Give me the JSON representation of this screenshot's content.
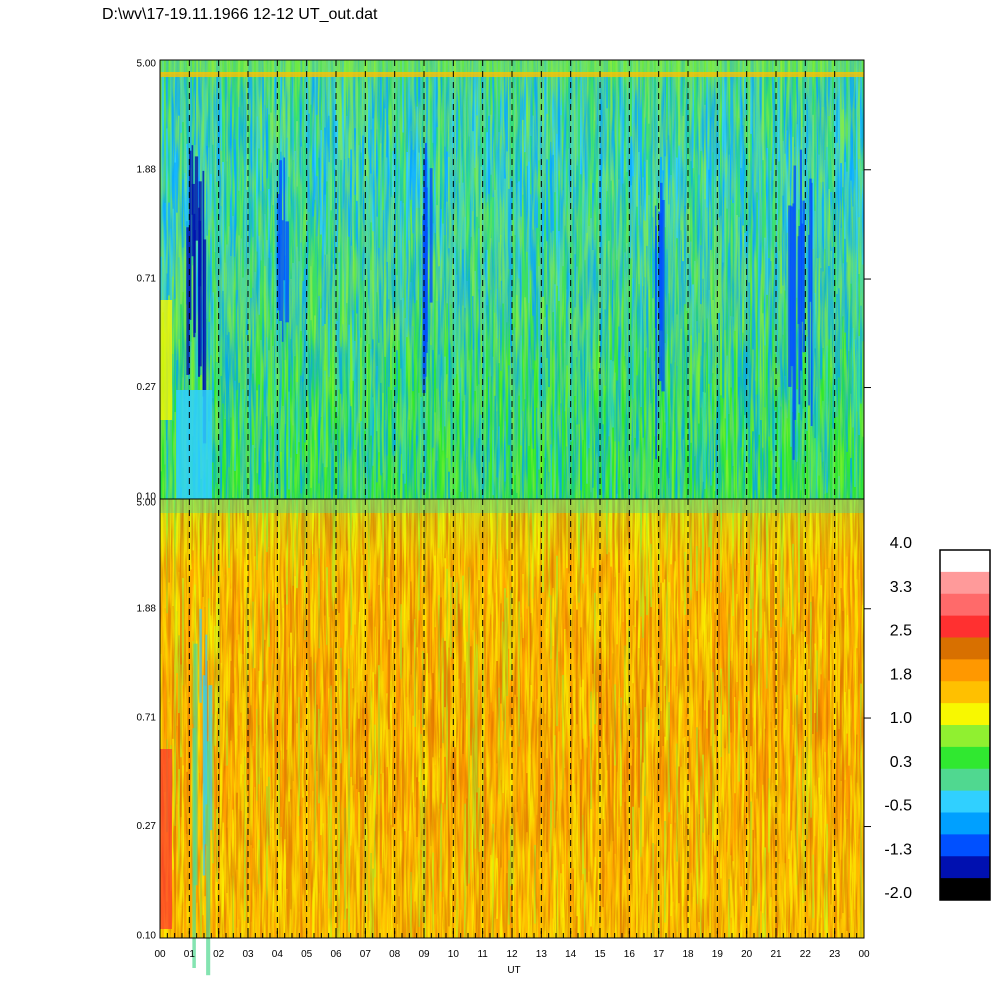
{
  "title": "D:\\wv\\17-19.11.1966  12-12 UT_out.dat",
  "colors": {
    "black": "#000000",
    "dark_blue": "#0010b0",
    "blue": "#0050ff",
    "sky_blue": "#00a0ff",
    "light_cyan": "#30d0ff",
    "teal_green": "#50d890",
    "green": "#30e830",
    "yellow_green": "#90f030",
    "yellow": "#f8f800",
    "light_orange": "#ffc000",
    "orange": "#ff9800",
    "dark_orange": "#d87000",
    "red": "#ff3030",
    "salmon": "#ff6a6a",
    "pink": "#ff9a9a",
    "white": "#ffffff"
  },
  "chart_data": [
    {
      "type": "heatmap",
      "panel": "upper",
      "xlabel": "",
      "x_ticks": [],
      "y_ticks": [
        "5.00",
        "1.88",
        "0.71",
        "0.27",
        "0.10"
      ],
      "y_scale": "log",
      "ylim": [
        0.1,
        5.0
      ],
      "xlim": [
        0,
        24
      ],
      "dominant_colors": [
        "green",
        "light_cyan",
        "teal_green",
        "sky_blue",
        "yellow_green"
      ],
      "notes": "vertical dashed gridlines at each hour; dark blue streaks near 01 UT, 04 UT, 17 UT and 22 UT"
    },
    {
      "type": "heatmap",
      "panel": "lower",
      "xlabel": "UT",
      "x_ticks": [
        "00",
        "01",
        "02",
        "03",
        "04",
        "05",
        "06",
        "07",
        "08",
        "09",
        "10",
        "11",
        "12",
        "13",
        "14",
        "15",
        "16",
        "17",
        "18",
        "19",
        "20",
        "21",
        "22",
        "23",
        "00"
      ],
      "y_ticks": [
        "5.00",
        "1.88",
        "0.71",
        "0.27",
        "0.10"
      ],
      "y_scale": "log",
      "ylim": [
        0.1,
        5.0
      ],
      "xlim": [
        0,
        24
      ],
      "dominant_colors": [
        "orange",
        "light_orange",
        "yellow",
        "yellow_green",
        "dark_orange"
      ],
      "notes": "vertical dashed gridlines at each hour; green/blue streak near 01 UT"
    }
  ],
  "colorbar": {
    "labels": [
      "4.0",
      "3.3",
      "2.5",
      "1.8",
      "1.0",
      "0.3",
      "-0.5",
      "-1.3",
      "-2.0"
    ],
    "segments": [
      "#ffffff",
      "#ff9a9a",
      "#ff6a6a",
      "#ff3030",
      "#d87000",
      "#ff9800",
      "#ffc000",
      "#f8f800",
      "#90f030",
      "#30e830",
      "#50d890",
      "#30d0ff",
      "#00a0ff",
      "#0050ff",
      "#0010b0",
      "#000000"
    ]
  }
}
